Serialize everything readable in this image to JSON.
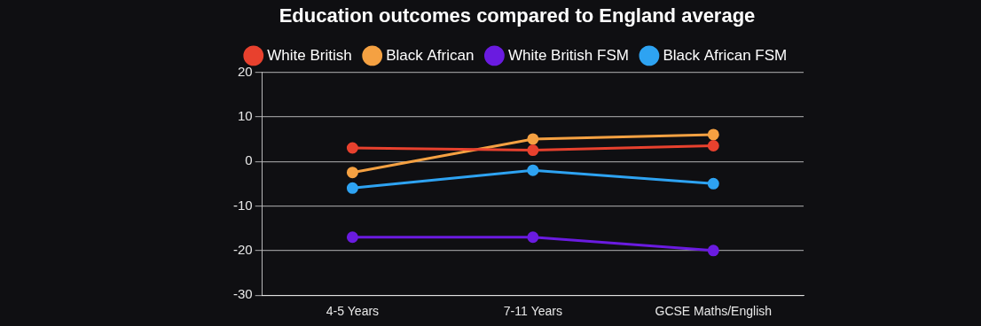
{
  "chart_data": {
    "type": "line",
    "title": "Education outcomes compared to England average",
    "categories": [
      "4-5 Years",
      "7-11 Years",
      "GCSE Maths/English"
    ],
    "series": [
      {
        "name": "White British",
        "color": "#e8412e",
        "values": [
          3,
          2.5,
          3.5
        ]
      },
      {
        "name": "Black African",
        "color": "#f5a142",
        "values": [
          -2.5,
          5,
          6
        ]
      },
      {
        "name": "White British FSM",
        "color": "#6a1be0",
        "values": [
          -17,
          -17,
          -20
        ]
      },
      {
        "name": "Black African FSM",
        "color": "#2ea3f2",
        "values": [
          -6,
          -2,
          -5
        ]
      }
    ],
    "ylim": [
      -30,
      20
    ],
    "yticks": [
      -30,
      -20,
      -10,
      0,
      10,
      20
    ],
    "grid": true,
    "legend": "top",
    "marker": "circle"
  }
}
